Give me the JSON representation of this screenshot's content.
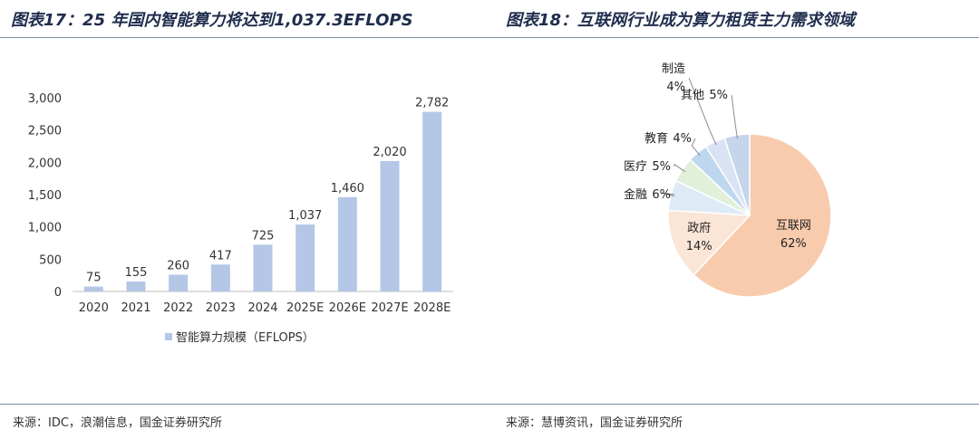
{
  "titles": {
    "left": "图表17：25 年国内智能算力将达到1,037.3EFLOPS",
    "right": "图表18：互联网行业成为算力租赁主力需求领域"
  },
  "sources": {
    "left": "来源：IDC，浪潮信息，国金证券研究所",
    "right": "来源：慧博资讯，国金证券研究所"
  },
  "chart_data": [
    {
      "type": "bar",
      "categories": [
        "2020",
        "2021",
        "2022",
        "2023",
        "2024",
        "2025E",
        "2026E",
        "2027E",
        "2028E"
      ],
      "series": [
        {
          "name": "智能算力规模（EFLOPS）",
          "values": [
            75,
            155,
            260,
            417,
            725,
            1037,
            1460,
            2020,
            2782
          ]
        }
      ],
      "data_labels": [
        "75",
        "155",
        "260",
        "417",
        "725",
        "1,037",
        "1,460",
        "2,020",
        "2,782"
      ],
      "yticks": [
        "0",
        "500",
        "1,000",
        "1,500",
        "2,000",
        "2,500",
        "3,000"
      ],
      "ylim": [
        0,
        3000
      ],
      "legend": "bottom",
      "color": "#b4c7e7"
    },
    {
      "type": "pie",
      "slices": [
        {
          "label": "互联网",
          "value": 62,
          "value_label": "62%",
          "color": "#f8cbad"
        },
        {
          "label": "政府",
          "value": 14,
          "value_label": "14%",
          "color": "#fbe5d6"
        },
        {
          "label": "金融",
          "value": 6,
          "value_label": "6%",
          "color": "#deebf7"
        },
        {
          "label": "医疗",
          "value": 5,
          "value_label": "5%",
          "color": "#e2f0d9"
        },
        {
          "label": "教育",
          "value": 4,
          "value_label": "4%",
          "color": "#bdd7ee"
        },
        {
          "label": "制造",
          "value": 4,
          "value_label": "4%",
          "color": "#dae3f3"
        },
        {
          "label": "其他",
          "value": 5,
          "value_label": "5%",
          "color": "#c5d5ea"
        }
      ]
    }
  ]
}
